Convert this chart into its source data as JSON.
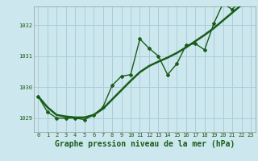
{
  "title": "Graphe pression niveau de la mer (hPa)",
  "background_color": "#cce8ee",
  "grid_color": "#aacdd8",
  "line_color": "#1a5c1a",
  "x": [
    0,
    1,
    2,
    3,
    4,
    5,
    6,
    7,
    8,
    9,
    10,
    11,
    12,
    13,
    14,
    15,
    16,
    17,
    18,
    19,
    20,
    21,
    22,
    23
  ],
  "y_main": [
    1029.7,
    1029.2,
    1029.0,
    1029.0,
    1029.0,
    1028.95,
    1029.1,
    1029.35,
    1030.05,
    1030.35,
    1030.4,
    1031.55,
    1031.25,
    1031.0,
    1030.4,
    1030.75,
    1031.35,
    1031.4,
    1031.2,
    1032.05,
    1032.7,
    1032.5,
    1032.85,
    1032.95
  ],
  "y_smooth": [
    1029.7,
    1029.35,
    1029.1,
    1029.05,
    1029.02,
    1029.02,
    1029.1,
    1029.3,
    1029.6,
    1029.9,
    1030.2,
    1030.48,
    1030.68,
    1030.82,
    1030.95,
    1031.1,
    1031.28,
    1031.48,
    1031.68,
    1031.9,
    1032.15,
    1032.4,
    1032.65,
    1032.9
  ],
  "ylim": [
    1028.55,
    1032.6
  ],
  "yticks": [
    1029,
    1030,
    1031,
    1032
  ],
  "xticks": [
    0,
    1,
    2,
    3,
    4,
    5,
    6,
    7,
    8,
    9,
    10,
    11,
    12,
    13,
    14,
    15,
    16,
    17,
    18,
    19,
    20,
    21,
    22,
    23
  ],
  "tick_label_fontsize": 5.0,
  "xlabel_fontsize": 7.0
}
